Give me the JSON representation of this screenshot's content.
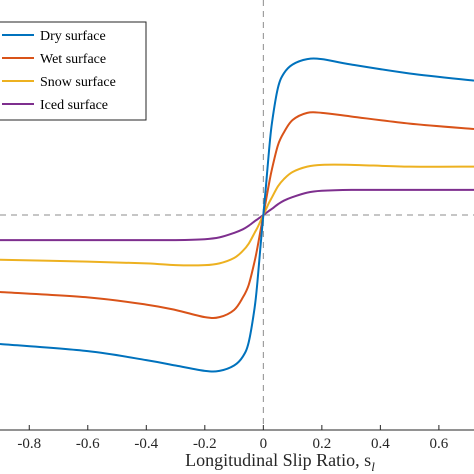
{
  "chart_data": {
    "type": "line",
    "xlabel": "Longitudinal Slip Ratio, s",
    "xlabel_subscript": "l",
    "xlim": [
      -0.9,
      0.72
    ],
    "ylim": [
      -1.2,
      1.2
    ],
    "x_ticks": [
      -0.8,
      -0.6,
      -0.4,
      -0.2,
      0,
      0.2,
      0.4,
      0.6
    ],
    "x_tick_labels": [
      "-0.8",
      "-0.6",
      "-0.4",
      "-0.2",
      "0",
      "0.2",
      "0.4",
      "0.6"
    ],
    "reference_lines": {
      "x": 0,
      "y": 0,
      "style": "dashed"
    },
    "legend_position": "top-left",
    "series": [
      {
        "name": "Dry surface",
        "color": "#0072BD",
        "x": [
          -0.9,
          -0.6,
          -0.4,
          -0.3,
          -0.2,
          -0.15,
          -0.1,
          -0.07,
          -0.05,
          -0.03,
          -0.02,
          -0.01,
          0,
          0.01,
          0.02,
          0.03,
          0.05,
          0.07,
          0.1,
          0.15,
          0.2,
          0.3,
          0.5,
          0.72
        ],
        "y": [
          -0.72,
          -0.76,
          -0.81,
          -0.84,
          -0.87,
          -0.87,
          -0.84,
          -0.79,
          -0.71,
          -0.52,
          -0.37,
          -0.18,
          0.0,
          0.18,
          0.37,
          0.52,
          0.71,
          0.79,
          0.84,
          0.87,
          0.87,
          0.84,
          0.79,
          0.75
        ]
      },
      {
        "name": "Wet surface",
        "color": "#D95319",
        "x": [
          -0.9,
          -0.6,
          -0.4,
          -0.3,
          -0.2,
          -0.15,
          -0.1,
          -0.07,
          -0.05,
          -0.03,
          -0.02,
          -0.01,
          0,
          0.01,
          0.02,
          0.03,
          0.05,
          0.07,
          0.1,
          0.15,
          0.2,
          0.3,
          0.5,
          0.72
        ],
        "y": [
          -0.43,
          -0.46,
          -0.5,
          -0.53,
          -0.57,
          -0.57,
          -0.53,
          -0.46,
          -0.39,
          -0.26,
          -0.18,
          -0.09,
          0.0,
          0.09,
          0.18,
          0.26,
          0.39,
          0.46,
          0.53,
          0.57,
          0.57,
          0.55,
          0.51,
          0.48
        ]
      },
      {
        "name": "Snow surface",
        "color": "#EDB120",
        "x": [
          -0.9,
          -0.6,
          -0.4,
          -0.3,
          -0.2,
          -0.15,
          -0.1,
          -0.07,
          -0.05,
          -0.03,
          -0.02,
          -0.01,
          0,
          0.01,
          0.02,
          0.03,
          0.05,
          0.07,
          0.1,
          0.15,
          0.2,
          0.3,
          0.5,
          0.72
        ],
        "y": [
          -0.25,
          -0.26,
          -0.27,
          -0.28,
          -0.28,
          -0.27,
          -0.24,
          -0.2,
          -0.16,
          -0.1,
          -0.07,
          -0.035,
          0.0,
          0.035,
          0.07,
          0.1,
          0.16,
          0.2,
          0.24,
          0.27,
          0.28,
          0.28,
          0.27,
          0.27
        ]
      },
      {
        "name": "Iced surface",
        "color": "#7E2F8E",
        "x": [
          -0.9,
          -0.6,
          -0.4,
          -0.3,
          -0.2,
          -0.15,
          -0.1,
          -0.07,
          -0.05,
          -0.03,
          -0.02,
          -0.01,
          0,
          0.01,
          0.02,
          0.03,
          0.05,
          0.07,
          0.1,
          0.15,
          0.2,
          0.3,
          0.5,
          0.72
        ],
        "y": [
          -0.14,
          -0.14,
          -0.14,
          -0.14,
          -0.135,
          -0.125,
          -0.1,
          -0.08,
          -0.06,
          -0.035,
          -0.024,
          -0.012,
          0.0,
          0.012,
          0.024,
          0.035,
          0.06,
          0.08,
          0.1,
          0.125,
          0.135,
          0.14,
          0.14,
          0.14
        ]
      }
    ]
  }
}
